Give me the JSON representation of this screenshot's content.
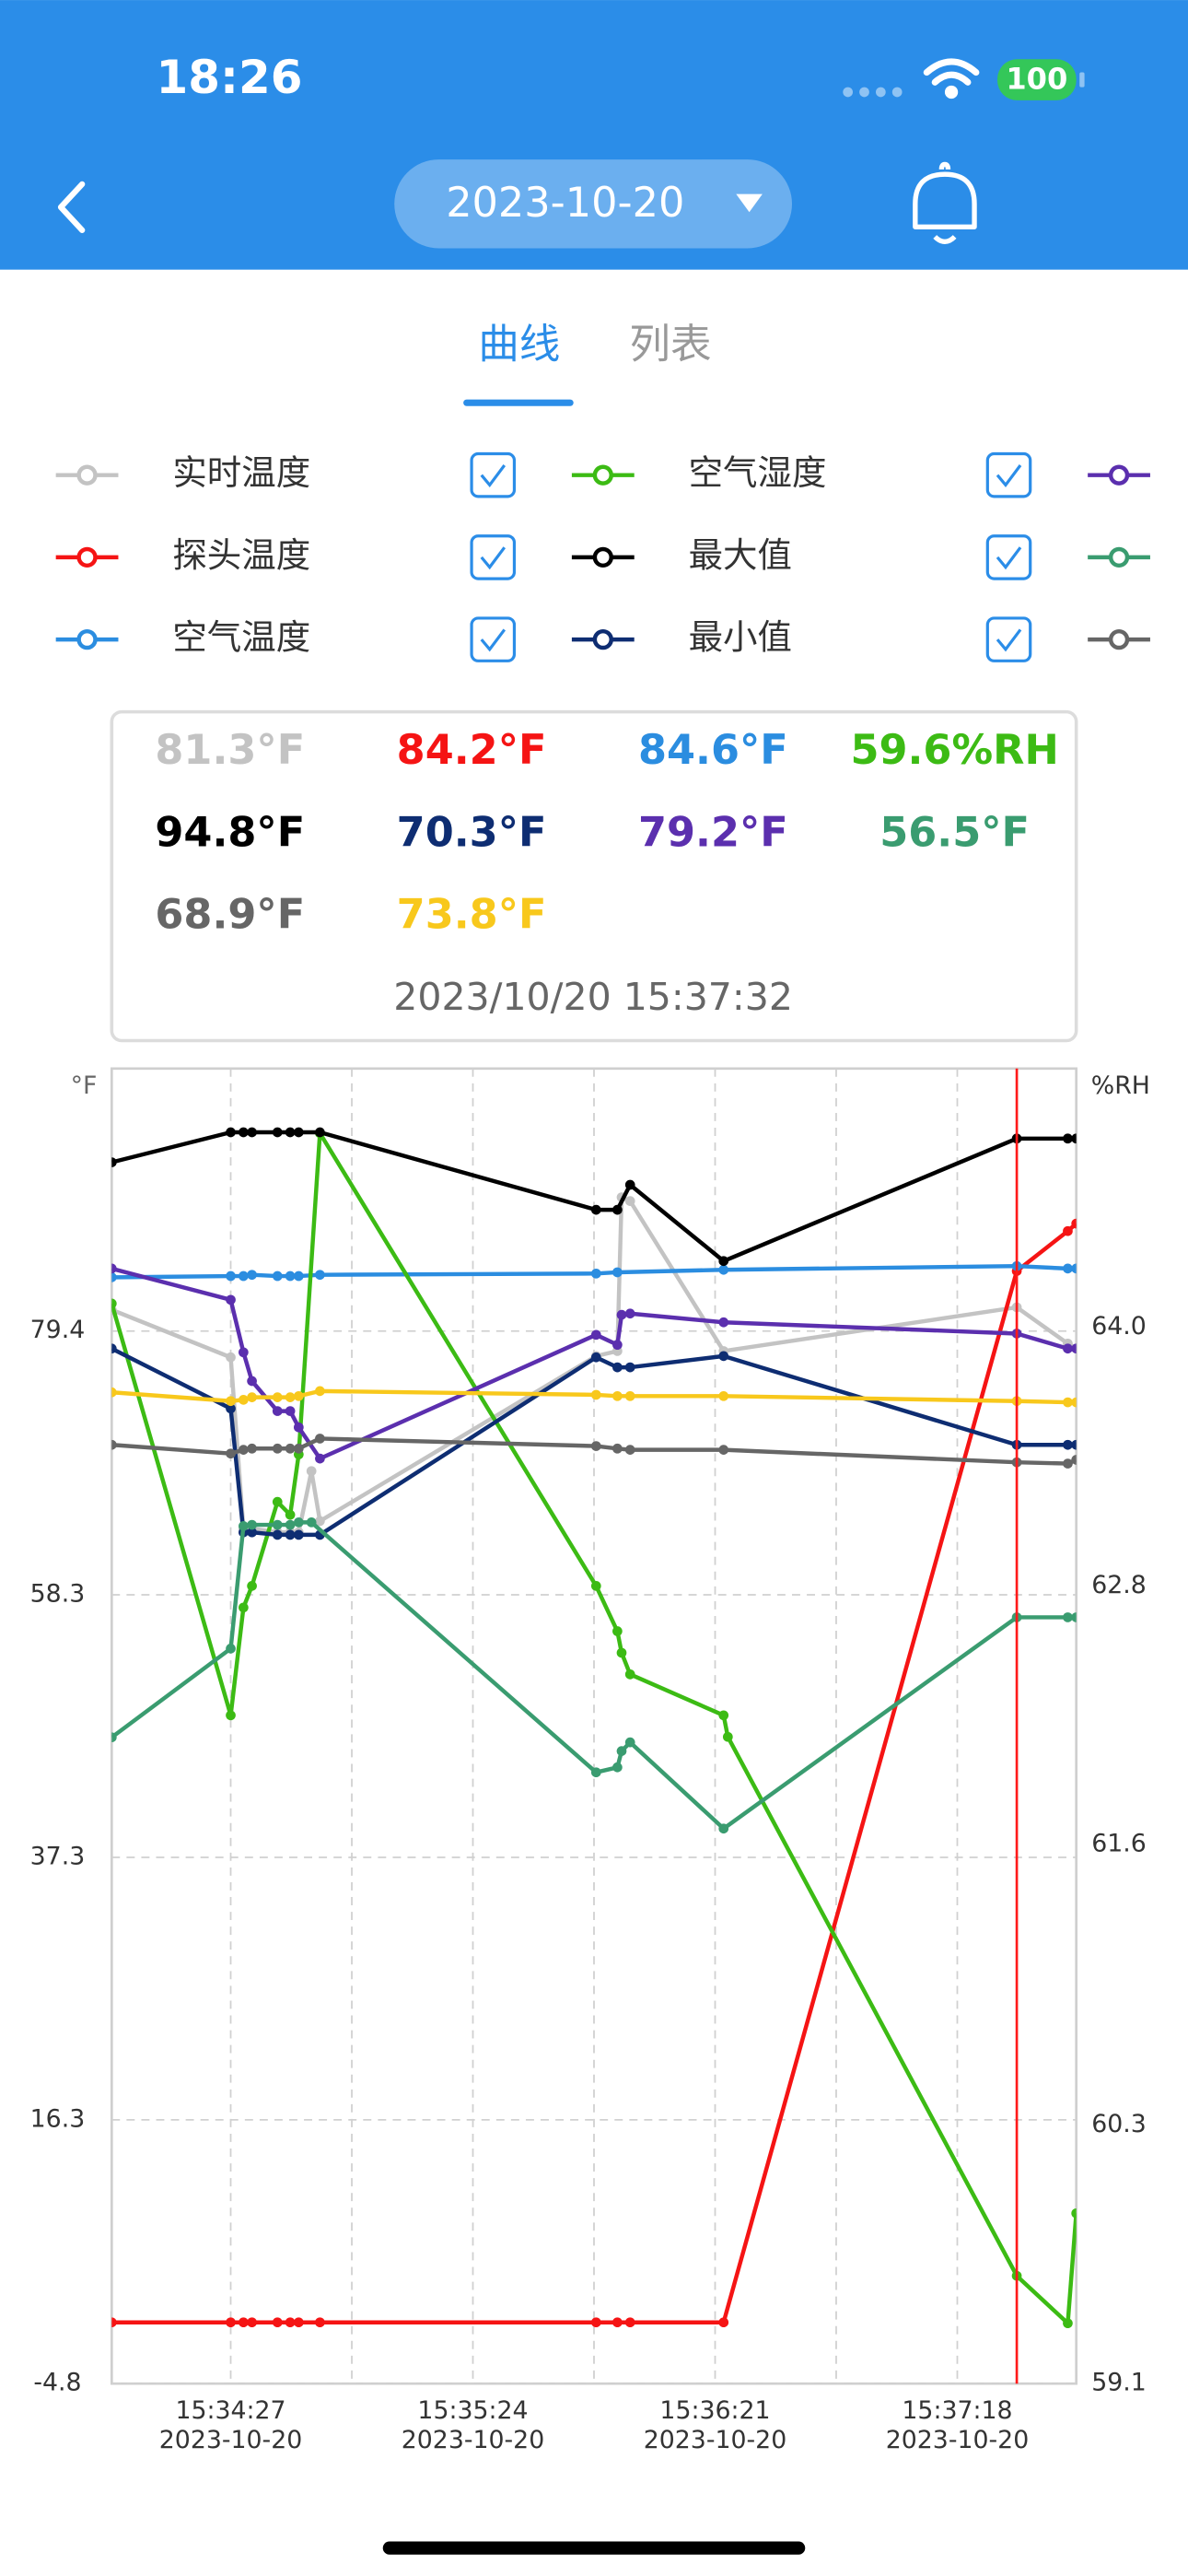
{
  "status_bar": {
    "time": "18:26",
    "battery": "100"
  },
  "header": {
    "date": "2023-10-20"
  },
  "tabs": [
    "曲线",
    "列表"
  ],
  "chart_data": {
    "type": "line",
    "y_label": "°F",
    "y2_label": "%RH",
    "xlim": [
      "15:33:59",
      "15:37:46"
    ],
    "xticks": [
      {
        "value": "15:34:27",
        "label": [
          "15:34:27",
          "2023-10-20"
        ]
      },
      {
        "value": "15:35:24",
        "label": [
          "15:35:24",
          "2023-10-20"
        ]
      },
      {
        "value": "15:36:21",
        "label": [
          "15:36:21",
          "2023-10-20"
        ]
      },
      {
        "value": "15:37:18",
        "label": [
          "15:37:18",
          "2023-10-20"
        ]
      }
    ],
    "ylim": [
      -4.8,
      100.4
    ],
    "yticks": [
      -4.8,
      16.3,
      37.3,
      58.3,
      79.4
    ],
    "y2lim": [
      59.1,
      65.2
    ],
    "y2ticks": [
      59.1,
      60.3,
      61.6,
      62.8,
      {
        "value": 64,
        "label": "64.0"
      }
    ],
    "grid": true,
    "cursor": "15:37:32",
    "cursor_color": "#ff1a1a",
    "readout": [
      "81.3°F",
      "84.2°F",
      "84.6°F",
      "59.6%RH",
      "94.8°F",
      "70.3°F",
      "79.2°F",
      "56.5°F",
      "68.9°F",
      "73.8°F"
    ],
    "readout_time": "2023/10/20 15:37:32",
    "series": [
      {
        "name": "实时温度",
        "color": "#c3c3c3",
        "x": [
          "15:33:59",
          "15:34:27",
          "15:34:30",
          "15:34:32",
          "15:34:38",
          "15:34:41",
          "15:34:43",
          "15:34:46",
          "15:34:48",
          "15:35:53",
          "15:35:58",
          "15:35:59",
          "15:36:01",
          "15:36:23",
          "15:37:32",
          "15:37:44",
          "15:37:46"
        ],
        "values": [
          81.1,
          77.3,
          63.6,
          63.6,
          63.3,
          63.3,
          63.3,
          68.2,
          64.2,
          77.4,
          77.8,
          90.1,
          89.8,
          77.8,
          81.3,
          78.4,
          78.0
        ]
      },
      {
        "name": "探头温度",
        "color": "#f51414",
        "x": [
          "15:33:59",
          "15:34:27",
          "15:34:30",
          "15:34:32",
          "15:34:38",
          "15:34:41",
          "15:34:43",
          "15:34:48",
          "15:35:53",
          "15:35:58",
          "15:36:01",
          "15:36:23",
          "15:37:32",
          "15:37:44",
          "15:37:46"
        ],
        "values": [
          0.1,
          0.1,
          0.1,
          0.1,
          0.1,
          0.1,
          0.1,
          0.1,
          0.1,
          0.1,
          0.1,
          0.1,
          84.2,
          87.4,
          88.0
        ]
      },
      {
        "name": "空气温度",
        "color": "#2b8de0",
        "x": [
          "15:33:59",
          "15:34:27",
          "15:34:30",
          "15:34:32",
          "15:34:38",
          "15:34:41",
          "15:34:43",
          "15:34:48",
          "15:35:53",
          "15:35:58",
          "15:36:23",
          "15:37:32",
          "15:37:44",
          "15:37:46"
        ],
        "values": [
          83.7,
          83.8,
          83.8,
          83.9,
          83.8,
          83.8,
          83.8,
          83.9,
          84.0,
          84.1,
          84.3,
          84.6,
          84.4,
          84.4
        ]
      },
      {
        "name": "空气湿度",
        "color": "#3cbb14",
        "axis": "y2",
        "x": [
          "15:33:59",
          "15:34:27",
          "15:34:30",
          "15:34:32",
          "15:34:38",
          "15:34:41",
          "15:34:43",
          "15:34:48",
          "15:35:53",
          "15:35:58",
          "15:35:59",
          "15:36:01",
          "15:36:23",
          "15:36:24",
          "15:37:32",
          "15:37:44",
          "15:37:46"
        ],
        "values": [
          64.11,
          62.2,
          62.7,
          62.8,
          63.19,
          63.13,
          63.41,
          64.9,
          62.8,
          62.59,
          62.49,
          62.39,
          62.2,
          62.1,
          59.6,
          59.38,
          59.89
        ]
      },
      {
        "name": "最大值",
        "color": "#000000",
        "x": [
          "15:33:59",
          "15:34:27",
          "15:34:30",
          "15:34:32",
          "15:34:38",
          "15:34:41",
          "15:34:43",
          "15:34:48",
          "15:35:53",
          "15:35:58",
          "15:36:01",
          "15:36:23",
          "15:37:32",
          "15:37:44",
          "15:37:46"
        ],
        "values": [
          92.9,
          95.3,
          95.3,
          95.3,
          95.3,
          95.3,
          95.3,
          95.3,
          89.1,
          89.1,
          91.1,
          85.0,
          94.8,
          94.8,
          94.8
        ]
      },
      {
        "name": "最小值",
        "color": "#0e2d72",
        "x": [
          "15:33:59",
          "15:34:27",
          "15:34:30",
          "15:34:32",
          "15:34:38",
          "15:34:41",
          "15:34:43",
          "15:34:48",
          "15:35:53",
          "15:35:58",
          "15:36:01",
          "15:36:23",
          "15:37:32",
          "15:37:44",
          "15:37:46"
        ],
        "values": [
          78.0,
          73.2,
          63.3,
          63.3,
          63.1,
          63.1,
          63.1,
          63.1,
          77.3,
          76.5,
          76.5,
          77.4,
          70.3,
          70.3,
          70.3
        ]
      },
      {
        "color": "#5b2fae",
        "x": [
          "15:33:59",
          "15:34:27",
          "15:34:30",
          "15:34:32",
          "15:34:38",
          "15:34:41",
          "15:34:43",
          "15:34:48",
          "15:35:53",
          "15:35:58",
          "15:35:59",
          "15:36:01",
          "15:36:23",
          "15:37:32",
          "15:37:44",
          "15:37:46"
        ],
        "values": [
          84.4,
          81.9,
          77.7,
          75.4,
          73.0,
          73.0,
          71.7,
          69.2,
          79.1,
          78.3,
          80.7,
          80.8,
          80.1,
          79.2,
          78.0,
          78.0
        ]
      },
      {
        "color": "#3a9c70",
        "x": [
          "15:33:59",
          "15:34:27",
          "15:34:30",
          "15:34:32",
          "15:34:38",
          "15:34:41",
          "15:34:43",
          "15:34:46",
          "15:35:53",
          "15:35:58",
          "15:35:59",
          "15:36:01",
          "15:36:23",
          "15:37:32",
          "15:37:44",
          "15:37:46"
        ],
        "values": [
          46.9,
          54.0,
          63.8,
          63.9,
          63.9,
          63.9,
          64.1,
          64.1,
          44.1,
          44.5,
          45.8,
          46.5,
          39.6,
          56.5,
          56.5,
          56.5
        ]
      },
      {
        "color": "#666666",
        "x": [
          "15:33:59",
          "15:34:27",
          "15:34:30",
          "15:34:32",
          "15:34:38",
          "15:34:41",
          "15:34:43",
          "15:34:48",
          "15:35:53",
          "15:35:58",
          "15:36:01",
          "15:36:23",
          "15:37:32",
          "15:37:44",
          "15:37:46"
        ],
        "values": [
          70.3,
          69.6,
          69.9,
          70.0,
          70.0,
          70.0,
          70.0,
          70.8,
          70.2,
          70.0,
          69.9,
          69.9,
          68.9,
          68.8,
          69.1
        ]
      },
      {
        "color": "#f8c81c",
        "x": [
          "15:33:59",
          "15:34:27",
          "15:34:30",
          "15:34:32",
          "15:34:38",
          "15:34:41",
          "15:34:43",
          "15:34:48",
          "15:35:53",
          "15:35:58",
          "15:36:01",
          "15:36:23",
          "15:37:32",
          "15:37:44",
          "15:37:46"
        ],
        "values": [
          74.5,
          73.8,
          73.9,
          74.1,
          74.1,
          74.1,
          74.2,
          74.6,
          74.3,
          74.2,
          74.2,
          74.2,
          73.8,
          73.7,
          73.7
        ]
      }
    ]
  }
}
